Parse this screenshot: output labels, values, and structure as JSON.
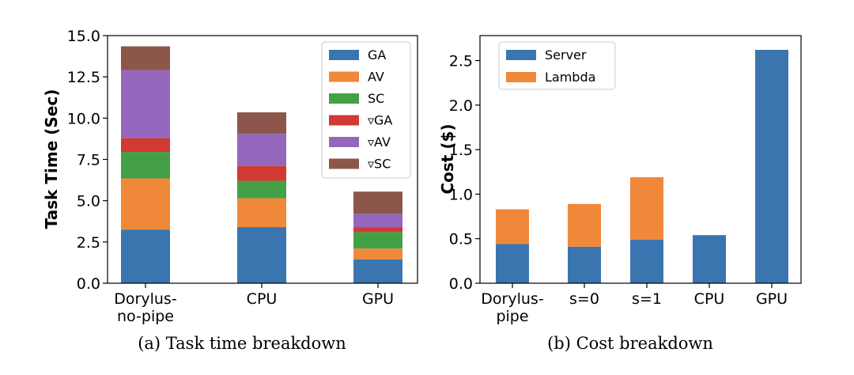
{
  "colors": {
    "GA": "#3a75b0",
    "AV": "#f0883a",
    "SC": "#43a046",
    "dGA": "#d03a32",
    "dAV": "#9467bd",
    "dSC": "#8c564b",
    "Server": "#3a75b0",
    "Lambda": "#f0883a"
  },
  "chart_data": [
    {
      "type": "bar",
      "stacked": true,
      "title": "",
      "caption": "(a) Task time breakdown",
      "xlabel": "",
      "ylabel": "Task Time (Sec)",
      "ylim": [
        0,
        15
      ],
      "yticks": [
        "0.0",
        "2.5",
        "5.0",
        "7.5",
        "10.0",
        "12.5",
        "15.0"
      ],
      "categories": [
        {
          "line1": "Dorylus-",
          "line2": "no-pipe"
        },
        {
          "line1": "CPU",
          "line2": ""
        },
        {
          "line1": "GPU",
          "line2": ""
        }
      ],
      "legend_position": "top-right",
      "series": [
        {
          "key": "GA",
          "name": "GA",
          "values": [
            3.25,
            3.4,
            1.45
          ]
        },
        {
          "key": "AV",
          "name": "AV",
          "values": [
            3.1,
            1.75,
            0.65
          ]
        },
        {
          "key": "SC",
          "name": "SC",
          "values": [
            1.6,
            1.05,
            1.0
          ]
        },
        {
          "key": "dGA",
          "name": "▿GA",
          "values": [
            0.85,
            0.9,
            0.3
          ]
        },
        {
          "key": "dAV",
          "name": "▿AV",
          "values": [
            4.1,
            1.95,
            0.8
          ]
        },
        {
          "key": "dSC",
          "name": "▿SC",
          "values": [
            1.45,
            1.3,
            1.35
          ]
        }
      ]
    },
    {
      "type": "bar",
      "stacked": true,
      "title": "",
      "caption": "(b) Cost breakdown",
      "xlabel": "",
      "ylabel": "Cost ($)",
      "ylim": [
        0,
        2.78
      ],
      "yticks": [
        "0.0",
        "0.5",
        "1.0",
        "1.5",
        "2.0",
        "2.5"
      ],
      "categories": [
        {
          "line1": "Dorylus-",
          "line2": "pipe"
        },
        {
          "line1": "s=0",
          "line2": ""
        },
        {
          "line1": "s=1",
          "line2": ""
        },
        {
          "line1": "CPU",
          "line2": ""
        },
        {
          "line1": "GPU",
          "line2": ""
        }
      ],
      "legend_position": "top-left",
      "series": [
        {
          "key": "Server",
          "name": "Server",
          "values": [
            0.44,
            0.41,
            0.49,
            0.54,
            2.62
          ]
        },
        {
          "key": "Lambda",
          "name": "Lambda",
          "values": [
            0.39,
            0.48,
            0.7,
            0,
            0
          ]
        }
      ]
    }
  ]
}
